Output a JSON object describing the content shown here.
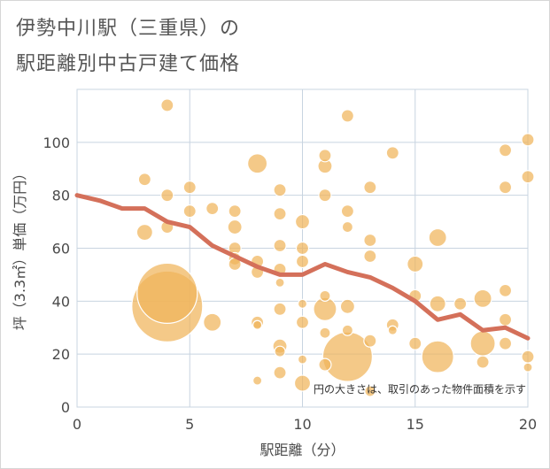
{
  "title_line1": "伊勢中川駅（三重県）の",
  "title_line2": "駅距離別中古戸建て価格",
  "note": "円の大きさは、取引のあった物件面積を示す",
  "colors": {
    "bubble": "#f0b45a",
    "line": "#d4705a",
    "grid": "#c8d4e0",
    "background": "#ffffff"
  },
  "chart_data": {
    "type": "scatter",
    "xlabel": "駅距離（分）",
    "ylabel": "坪（3.3㎡）単価（万円）",
    "xlim": [
      0,
      20
    ],
    "ylim": [
      0,
      120
    ],
    "xticks": [
      0,
      5,
      10,
      15,
      20
    ],
    "yticks": [
      0,
      20,
      40,
      60,
      80,
      100
    ],
    "grid": true,
    "bubbles": [
      {
        "x": 4,
        "y": 38,
        "s": 40
      },
      {
        "x": 4,
        "y": 43,
        "s": 34
      },
      {
        "x": 12,
        "y": 19,
        "s": 28
      },
      {
        "x": 16,
        "y": 19,
        "s": 18
      },
      {
        "x": 18,
        "y": 24,
        "s": 14
      },
      {
        "x": 11,
        "y": 37,
        "s": 13
      },
      {
        "x": 8,
        "y": 92,
        "s": 11
      },
      {
        "x": 6,
        "y": 32,
        "s": 10
      },
      {
        "x": 18,
        "y": 41,
        "s": 10
      },
      {
        "x": 16,
        "y": 64,
        "s": 10
      },
      {
        "x": 3,
        "y": 66,
        "s": 9
      },
      {
        "x": 15,
        "y": 54,
        "s": 9
      },
      {
        "x": 10,
        "y": 9,
        "s": 9
      },
      {
        "x": 11,
        "y": 91,
        "s": 8
      },
      {
        "x": 16,
        "y": 39,
        "s": 9
      },
      {
        "x": 12,
        "y": 38,
        "s": 8
      },
      {
        "x": 9,
        "y": 23,
        "s": 8
      },
      {
        "x": 7,
        "y": 68,
        "s": 8
      },
      {
        "x": 10,
        "y": 70,
        "s": 8
      },
      {
        "x": 12,
        "y": 74,
        "s": 7
      },
      {
        "x": 13,
        "y": 83,
        "s": 7
      },
      {
        "x": 13,
        "y": 57,
        "s": 7
      },
      {
        "x": 13,
        "y": 63,
        "s": 7
      },
      {
        "x": 13,
        "y": 25,
        "s": 7
      },
      {
        "x": 10,
        "y": 60,
        "s": 7
      },
      {
        "x": 10,
        "y": 55,
        "s": 7
      },
      {
        "x": 11,
        "y": 80,
        "s": 7
      },
      {
        "x": 9,
        "y": 82,
        "s": 7
      },
      {
        "x": 9,
        "y": 73,
        "s": 7
      },
      {
        "x": 4,
        "y": 114,
        "s": 7
      },
      {
        "x": 12,
        "y": 110,
        "s": 7
      },
      {
        "x": 3,
        "y": 86,
        "s": 7
      },
      {
        "x": 5,
        "y": 83,
        "s": 7
      },
      {
        "x": 4,
        "y": 80,
        "s": 7
      },
      {
        "x": 5,
        "y": 74,
        "s": 7
      },
      {
        "x": 6,
        "y": 75,
        "s": 7
      },
      {
        "x": 7,
        "y": 74,
        "s": 7
      },
      {
        "x": 4,
        "y": 68,
        "s": 7
      },
      {
        "x": 7,
        "y": 60,
        "s": 7
      },
      {
        "x": 7,
        "y": 56,
        "s": 7
      },
      {
        "x": 7,
        "y": 54,
        "s": 7
      },
      {
        "x": 8,
        "y": 55,
        "s": 7
      },
      {
        "x": 8,
        "y": 51,
        "s": 7
      },
      {
        "x": 9,
        "y": 61,
        "s": 7
      },
      {
        "x": 9,
        "y": 52,
        "s": 7
      },
      {
        "x": 8,
        "y": 32,
        "s": 7
      },
      {
        "x": 9,
        "y": 37,
        "s": 7
      },
      {
        "x": 10,
        "y": 32,
        "s": 7
      },
      {
        "x": 9,
        "y": 13,
        "s": 7
      },
      {
        "x": 11,
        "y": 95,
        "s": 7
      },
      {
        "x": 11,
        "y": 16,
        "s": 7
      },
      {
        "x": 14,
        "y": 96,
        "s": 7
      },
      {
        "x": 14,
        "y": 31,
        "s": 7
      },
      {
        "x": 15,
        "y": 42,
        "s": 7
      },
      {
        "x": 15,
        "y": 24,
        "s": 7
      },
      {
        "x": 17,
        "y": 39,
        "s": 7
      },
      {
        "x": 18,
        "y": 17,
        "s": 7
      },
      {
        "x": 19,
        "y": 97,
        "s": 7
      },
      {
        "x": 19,
        "y": 83,
        "s": 7
      },
      {
        "x": 19,
        "y": 44,
        "s": 7
      },
      {
        "x": 19,
        "y": 33,
        "s": 7
      },
      {
        "x": 19,
        "y": 24,
        "s": 7
      },
      {
        "x": 20,
        "y": 101,
        "s": 7
      },
      {
        "x": 20,
        "y": 87,
        "s": 7
      },
      {
        "x": 20,
        "y": 19,
        "s": 7
      },
      {
        "x": 13,
        "y": 6,
        "s": 6
      },
      {
        "x": 8,
        "y": 10,
        "s": 5
      },
      {
        "x": 11,
        "y": 42,
        "s": 6
      },
      {
        "x": 11,
        "y": 28,
        "s": 6
      },
      {
        "x": 12,
        "y": 68,
        "s": 6
      },
      {
        "x": 12,
        "y": 29,
        "s": 6
      },
      {
        "x": 10,
        "y": 39,
        "s": 5
      },
      {
        "x": 9,
        "y": 47,
        "s": 5
      },
      {
        "x": 9,
        "y": 21,
        "s": 6
      },
      {
        "x": 10,
        "y": 18,
        "s": 5
      },
      {
        "x": 14,
        "y": 29,
        "s": 5
      },
      {
        "x": 20,
        "y": 15,
        "s": 5
      },
      {
        "x": 8,
        "y": 31,
        "s": 5
      }
    ],
    "trend": {
      "x": [
        0,
        1,
        2,
        3,
        4,
        5,
        6,
        7,
        8,
        9,
        10,
        11,
        12,
        13,
        14,
        15,
        16,
        17,
        18,
        19,
        20
      ],
      "y": [
        80,
        78,
        75,
        75,
        70,
        68,
        61,
        57,
        53,
        50,
        50,
        54,
        51,
        49,
        45,
        40,
        33,
        35,
        29,
        30,
        26
      ]
    }
  }
}
